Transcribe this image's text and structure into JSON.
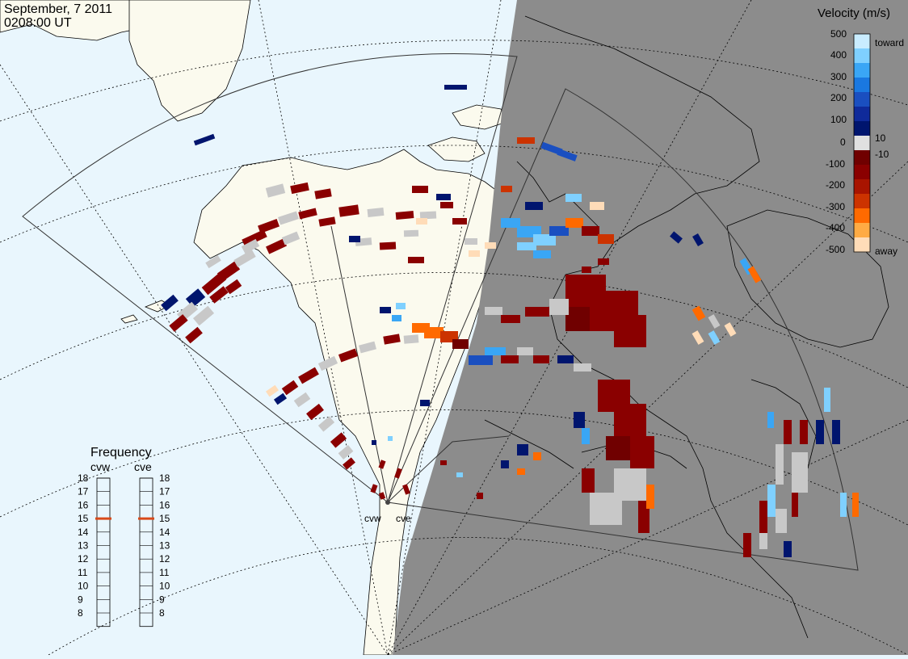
{
  "header": {
    "date": "September, 7 2011",
    "time": "0208:00 UT"
  },
  "colors": {
    "ocean": "#e9f6fd",
    "land": "#fbfaee",
    "night": "#8c8c8c",
    "ground_scatter": "#c8c8c8",
    "coast": "#000000",
    "grid": "#000000"
  },
  "radars": [
    {
      "label": "cvw"
    },
    {
      "label": "cve"
    }
  ],
  "velocity_scale": {
    "title": "Velocity (m/s)",
    "ticks": [
      "500",
      "400",
      "300",
      "200",
      "100",
      "10",
      "0",
      "-10",
      "-100",
      "-200",
      "-300",
      "-400",
      "-500"
    ],
    "toward_label": "toward",
    "away_label": "away",
    "colors": [
      "#c9ecff",
      "#7fd0ff",
      "#3aa6f5",
      "#1a78e0",
      "#1a4fc0",
      "#0f2a9a",
      "#00156e",
      "#e0e0e0",
      "#700000",
      "#8a0000",
      "#a81400",
      "#cc3300",
      "#ff6a00",
      "#ffab44",
      "#ffdcb8"
    ]
  },
  "frequency": {
    "title": "Frequency",
    "labels": [
      "cvw",
      "cve"
    ],
    "levels": [
      "18",
      "17",
      "16",
      "15",
      "14",
      "13",
      "12",
      "11",
      "10",
      "9",
      "8"
    ],
    "cvw_value": 15,
    "cve_value": 15
  }
}
